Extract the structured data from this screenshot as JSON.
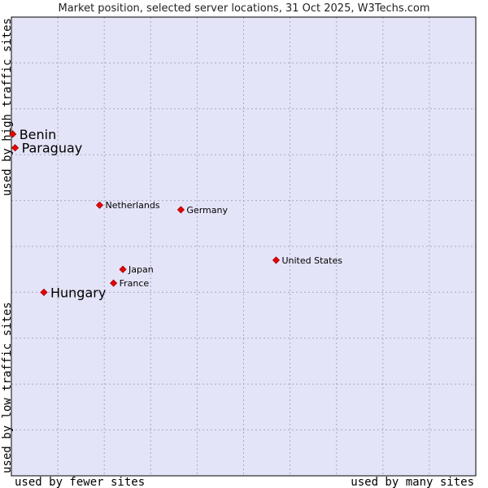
{
  "chart_data": {
    "type": "scatter",
    "title": "Market position, selected server locations, 31 Oct 2025, W3Techs.com",
    "xlabel_left": "used by fewer sites",
    "xlabel_right": "used by many sites",
    "ylabel_top": "used by high traffic sites",
    "ylabel_bottom": "used by low traffic sites",
    "xlim": [
      0,
      100
    ],
    "ylim": [
      0,
      100
    ],
    "grid": true,
    "x_grid_steps": 10,
    "y_grid_steps": 10,
    "points": [
      {
        "name": "Benin",
        "x": 0.3,
        "y": 74.5,
        "highlight": true
      },
      {
        "name": "Paraguay",
        "x": 0.8,
        "y": 71.5,
        "highlight": true
      },
      {
        "name": "Netherlands",
        "x": 19.0,
        "y": 59.0,
        "highlight": false
      },
      {
        "name": "Germany",
        "x": 36.5,
        "y": 58.0,
        "highlight": false
      },
      {
        "name": "United States",
        "x": 57.0,
        "y": 47.0,
        "highlight": false
      },
      {
        "name": "Japan",
        "x": 24.0,
        "y": 45.0,
        "highlight": false
      },
      {
        "name": "France",
        "x": 22.0,
        "y": 42.0,
        "highlight": false
      },
      {
        "name": "Hungary",
        "x": 7.0,
        "y": 40.0,
        "highlight": true
      }
    ]
  },
  "colors": {
    "plot_background": "#e4e4f8",
    "marker_fill": "#ee0000",
    "marker_stroke": "#990000",
    "frame": "#000000"
  }
}
